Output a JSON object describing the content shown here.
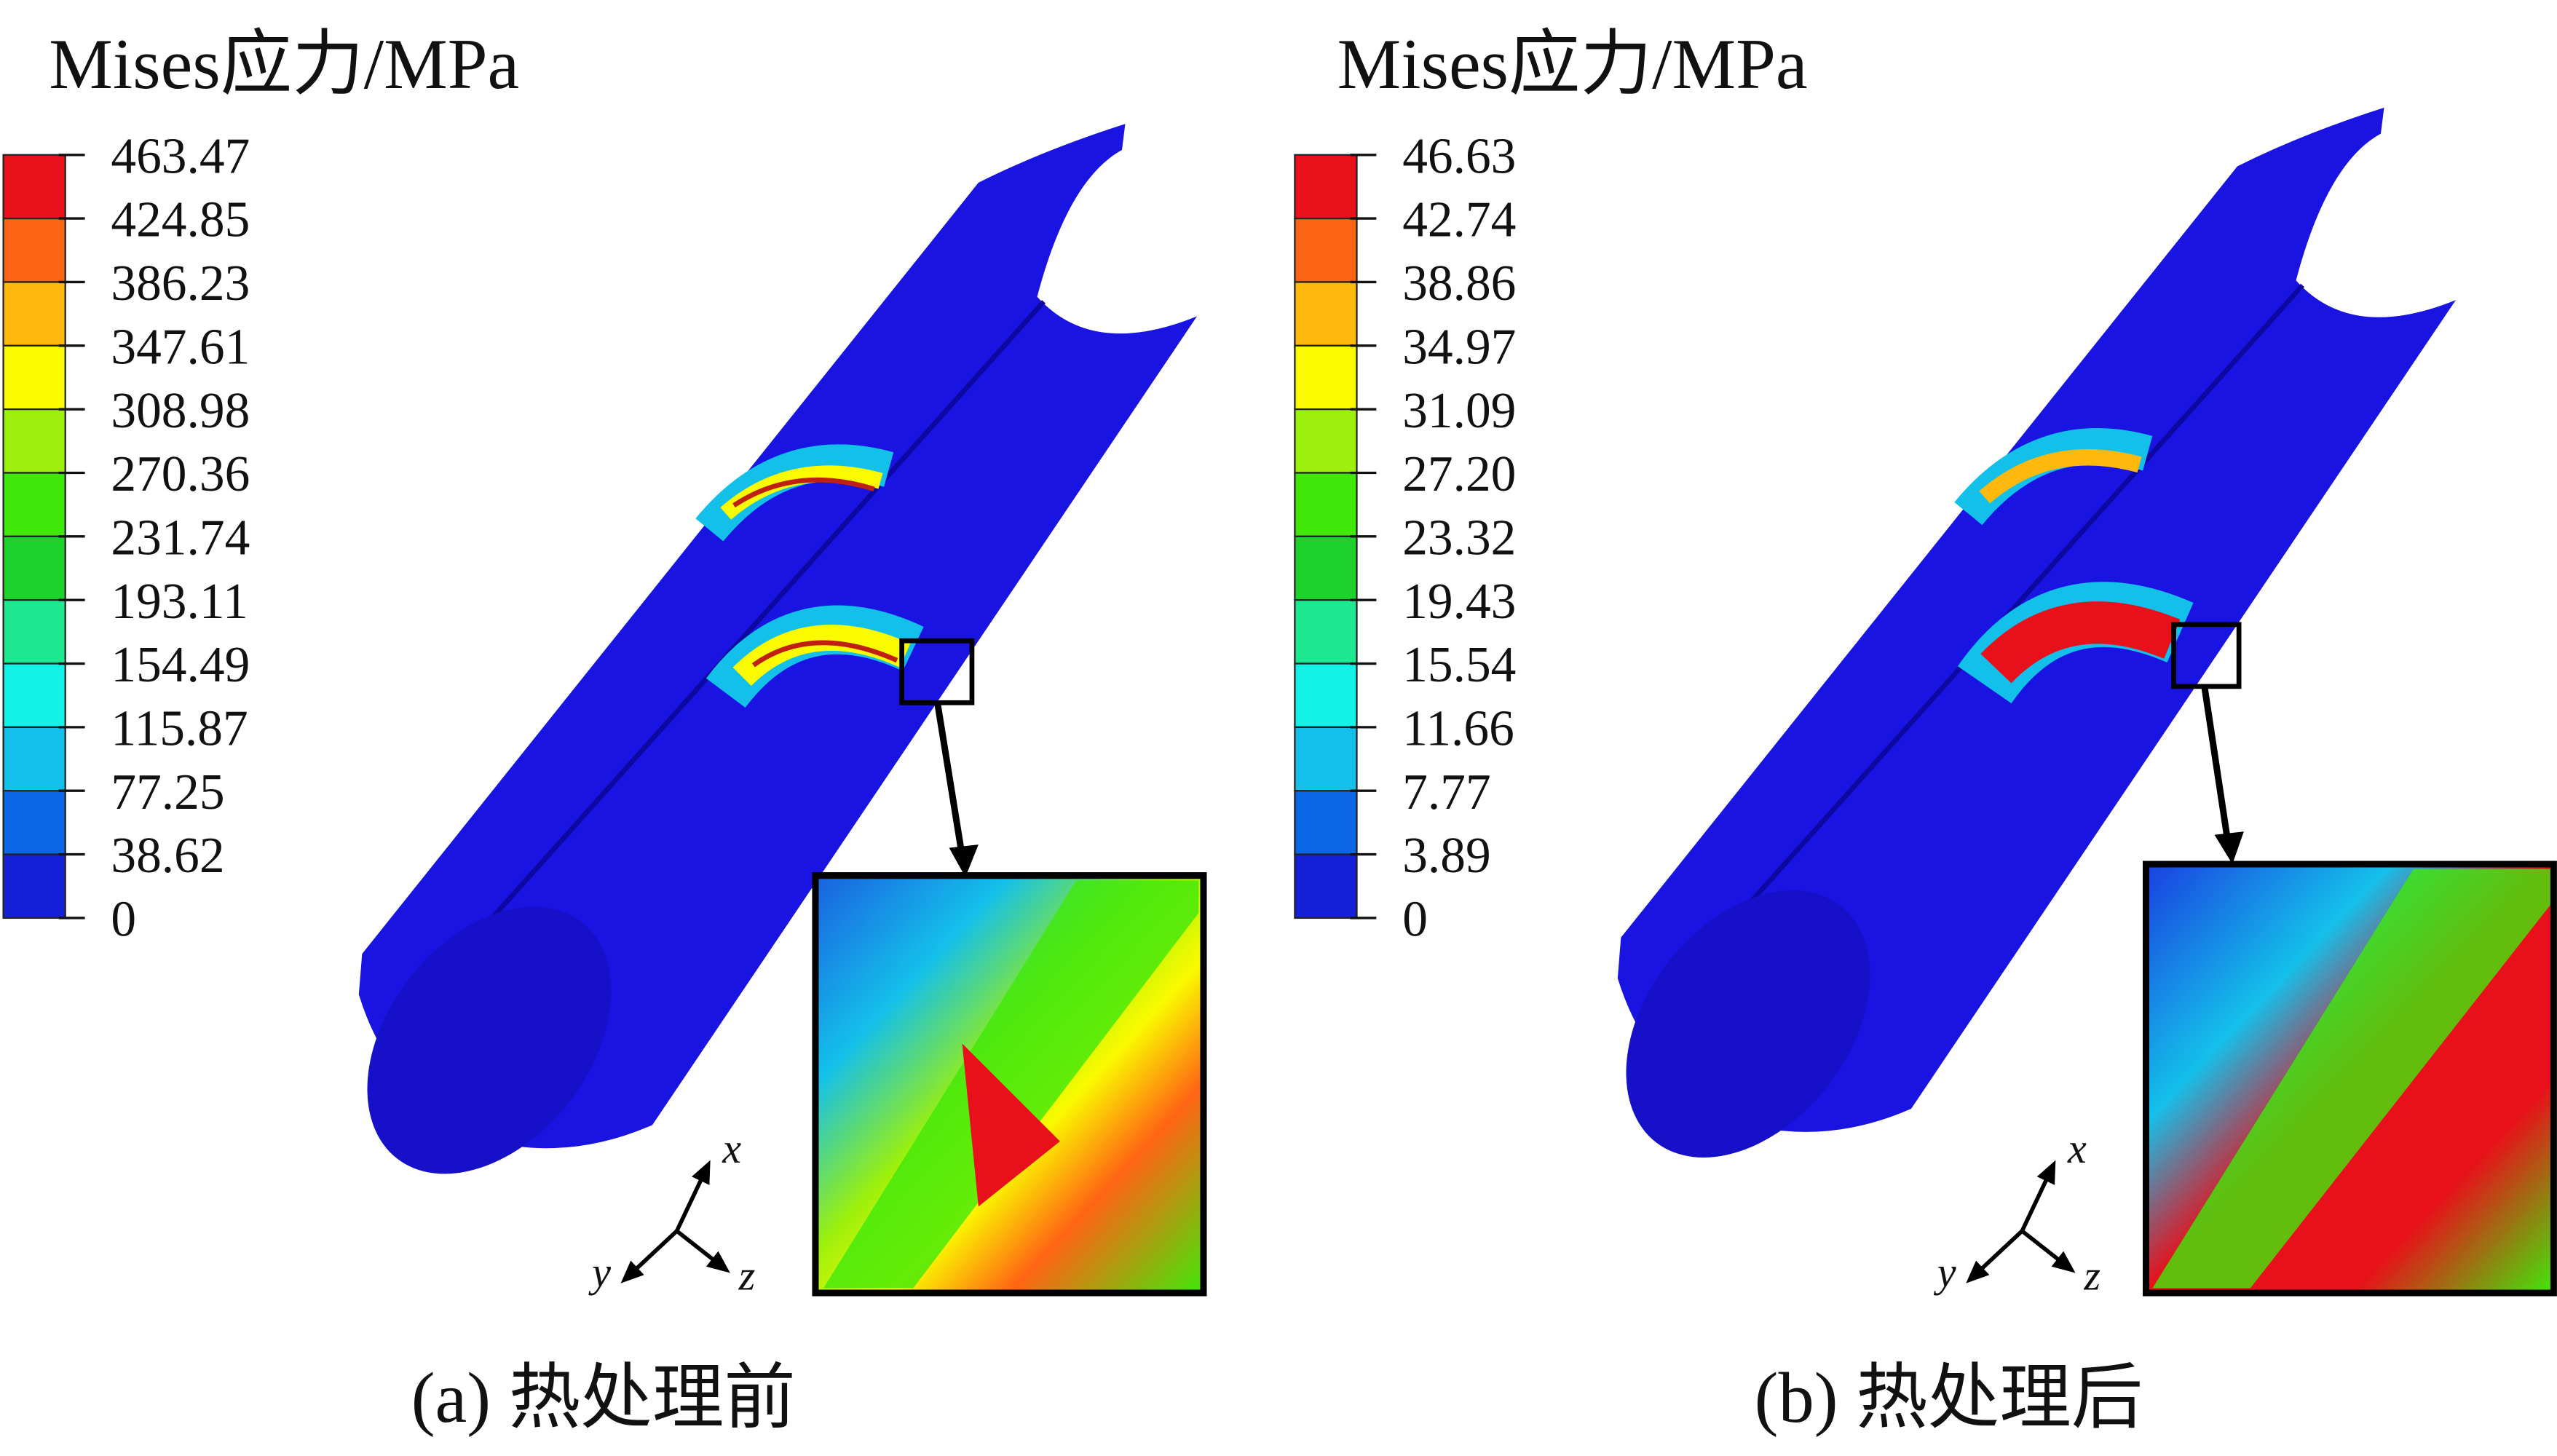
{
  "panels": [
    {
      "legend_title": "Mises应力/MPa",
      "legend_values": [
        "463.47",
        "424.85",
        "386.23",
        "347.61",
        "308.98",
        "270.36",
        "231.74",
        "193.11",
        "154.49",
        "115.87",
        "77.25",
        "38.62",
        "0"
      ],
      "caption": "(a) 热处理前",
      "axes": {
        "x": "x",
        "y": "y",
        "z": "z"
      }
    },
    {
      "legend_title": "Mises应力/MPa",
      "legend_values": [
        "46.63",
        "42.74",
        "38.86",
        "34.97",
        "31.09",
        "27.20",
        "23.32",
        "19.43",
        "15.54",
        "11.66",
        "7.77",
        "3.89",
        "0"
      ],
      "caption": "(b) 热处理后",
      "axes": {
        "x": "x",
        "y": "y",
        "z": "z"
      }
    }
  ],
  "colors": {
    "bands_top_to_bottom": [
      "#e8101a",
      "#fb6414",
      "#ffb80c",
      "#fafa00",
      "#9cf00c",
      "#40e80a",
      "#1ed22c",
      "#1ee890",
      "#12f2e6",
      "#12c0ea",
      "#0a68e6",
      "#1620d6"
    ],
    "pipe": "#1a14e2",
    "pipe_dark": "#1008b8"
  }
}
